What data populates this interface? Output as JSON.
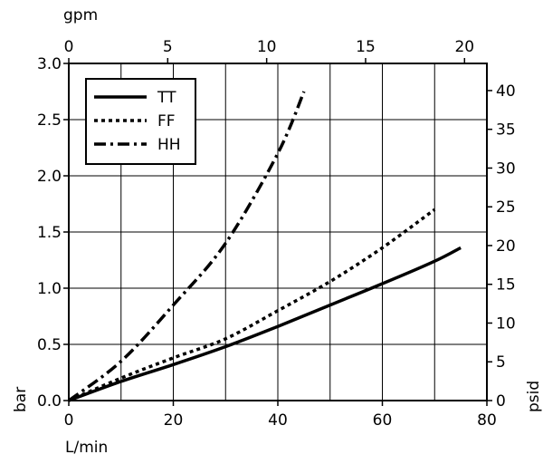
{
  "chart_data": {
    "type": "line",
    "title": "",
    "xlabel": "L/min",
    "ylabel": "bar",
    "x2label": "gpm",
    "y2label": "psid",
    "xlim": [
      0,
      80
    ],
    "ylim": [
      0,
      3.0
    ],
    "x2lim": [
      0,
      21.13
    ],
    "y2lim": [
      0,
      43.5
    ],
    "x_ticks": [
      "0",
      "20",
      "40",
      "60",
      "80"
    ],
    "y_ticks": [
      "0.0",
      "0.5",
      "1.0",
      "1.5",
      "2.0",
      "2.5",
      "3.0"
    ],
    "x2_ticks": [
      "0",
      "5",
      "10",
      "15",
      "20"
    ],
    "y2_ticks": [
      "0",
      "5",
      "10",
      "15",
      "20",
      "25",
      "30",
      "35",
      "40"
    ],
    "grid": true,
    "legend_position": "top-left",
    "series": [
      {
        "name": "TT",
        "style": "solid",
        "x": [
          0,
          10,
          20,
          30,
          40,
          50,
          60,
          70,
          75
        ],
        "y": [
          0,
          0.17,
          0.32,
          0.48,
          0.66,
          0.85,
          1.04,
          1.24,
          1.36
        ]
      },
      {
        "name": "FF",
        "style": "dotted",
        "x": [
          0,
          10,
          20,
          30,
          40,
          50,
          60,
          70
        ],
        "y": [
          0,
          0.2,
          0.38,
          0.55,
          0.8,
          1.06,
          1.36,
          1.7
        ]
      },
      {
        "name": "HH",
        "style": "dashdot",
        "x": [
          0,
          10,
          20,
          30,
          40,
          45
        ],
        "y": [
          0,
          0.35,
          0.85,
          1.4,
          2.2,
          2.75
        ]
      }
    ]
  }
}
